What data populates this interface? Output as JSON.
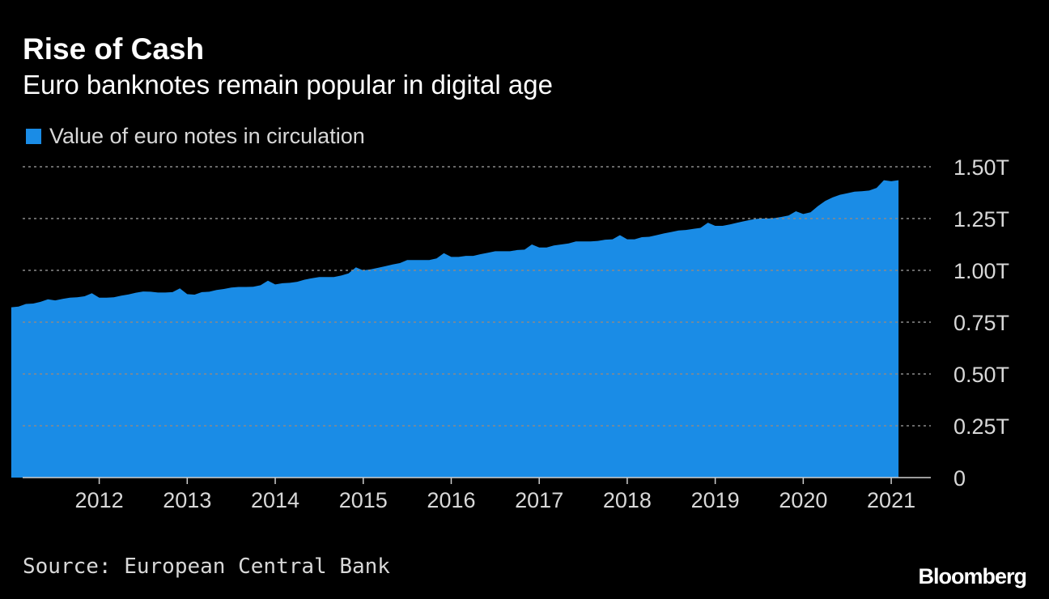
{
  "colors": {
    "background": "#000000",
    "area": "#1a8ce6",
    "grid": "#8a8a8a",
    "axis": "#cfcfcf",
    "text": "#ffffff",
    "muted": "#d8d8d8"
  },
  "source": "Source: European Central Bank",
  "brand": "Bloomberg",
  "chart_data": {
    "type": "area",
    "title": "Rise of Cash",
    "subtitle": "Euro banknotes remain popular in digital age",
    "legend": "Value of euro notes in circulation",
    "legend_position": "top-left",
    "y_axis_position": "right",
    "xlabel": "",
    "ylabel": "",
    "ylim": [
      0,
      1.5
    ],
    "y_ticks": [
      0,
      0.25,
      0.5,
      0.75,
      1.0,
      1.25,
      1.5
    ],
    "y_tick_labels": [
      "0",
      "0.25T",
      "0.50T",
      "0.75T",
      "1.00T",
      "1.25T",
      "1.50T"
    ],
    "xlim": [
      2011.13,
      2021.45
    ],
    "x_ticks": [
      2012,
      2013,
      2014,
      2015,
      2016,
      2017,
      2018,
      2019,
      2020,
      2021
    ],
    "x_tick_labels": [
      "2012",
      "2013",
      "2014",
      "2015",
      "2016",
      "2017",
      "2018",
      "2019",
      "2020",
      "2021"
    ],
    "grid": true,
    "series": [
      {
        "name": "Value of euro notes in circulation",
        "unit": "trillion EUR",
        "start": [
          2011,
          1
        ],
        "frequency": "monthly",
        "values": [
          0.822,
          0.825,
          0.838,
          0.84,
          0.848,
          0.86,
          0.855,
          0.862,
          0.868,
          0.87,
          0.875,
          0.89,
          0.868,
          0.868,
          0.87,
          0.878,
          0.884,
          0.892,
          0.898,
          0.897,
          0.893,
          0.893,
          0.895,
          0.913,
          0.885,
          0.883,
          0.895,
          0.897,
          0.905,
          0.91,
          0.917,
          0.92,
          0.92,
          0.921,
          0.928,
          0.95,
          0.932,
          0.938,
          0.94,
          0.945,
          0.955,
          0.962,
          0.968,
          0.968,
          0.968,
          0.975,
          0.985,
          1.015,
          1.0,
          1.005,
          1.012,
          1.02,
          1.028,
          1.035,
          1.05,
          1.05,
          1.05,
          1.05,
          1.058,
          1.083,
          1.065,
          1.065,
          1.07,
          1.07,
          1.078,
          1.085,
          1.092,
          1.092,
          1.092,
          1.098,
          1.1,
          1.125,
          1.11,
          1.11,
          1.12,
          1.125,
          1.13,
          1.14,
          1.14,
          1.14,
          1.142,
          1.148,
          1.15,
          1.17,
          1.15,
          1.15,
          1.16,
          1.162,
          1.17,
          1.178,
          1.185,
          1.192,
          1.195,
          1.2,
          1.205,
          1.23,
          1.215,
          1.215,
          1.222,
          1.23,
          1.238,
          1.245,
          1.25,
          1.25,
          1.252,
          1.258,
          1.265,
          1.285,
          1.272,
          1.28,
          1.31,
          1.335,
          1.352,
          1.365,
          1.372,
          1.38,
          1.382,
          1.385,
          1.398,
          1.435,
          1.43,
          1.435
        ]
      }
    ]
  }
}
